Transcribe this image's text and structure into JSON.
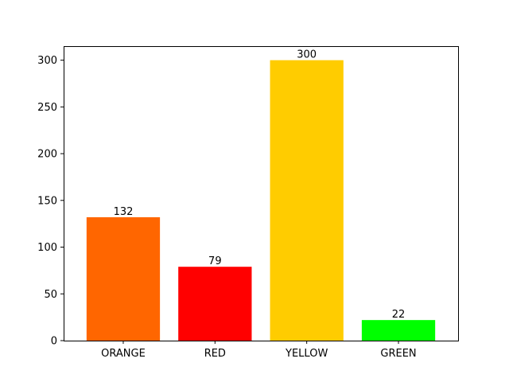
{
  "chart_data": {
    "type": "bar",
    "title": "",
    "xlabel": "",
    "ylabel": "",
    "categories": [
      "ORANGE",
      "RED",
      "YELLOW",
      "GREEN"
    ],
    "values": [
      132,
      79,
      300,
      22
    ],
    "colors": [
      "#ff6600",
      "#ff0000",
      "#ffcc00",
      "#00ff00"
    ],
    "data_labels": [
      "132",
      "79",
      "300",
      "22"
    ],
    "ylim": [
      0,
      315
    ],
    "yticks": [
      0,
      50,
      100,
      150,
      200,
      250,
      300
    ],
    "grid": false,
    "legend": "none"
  }
}
